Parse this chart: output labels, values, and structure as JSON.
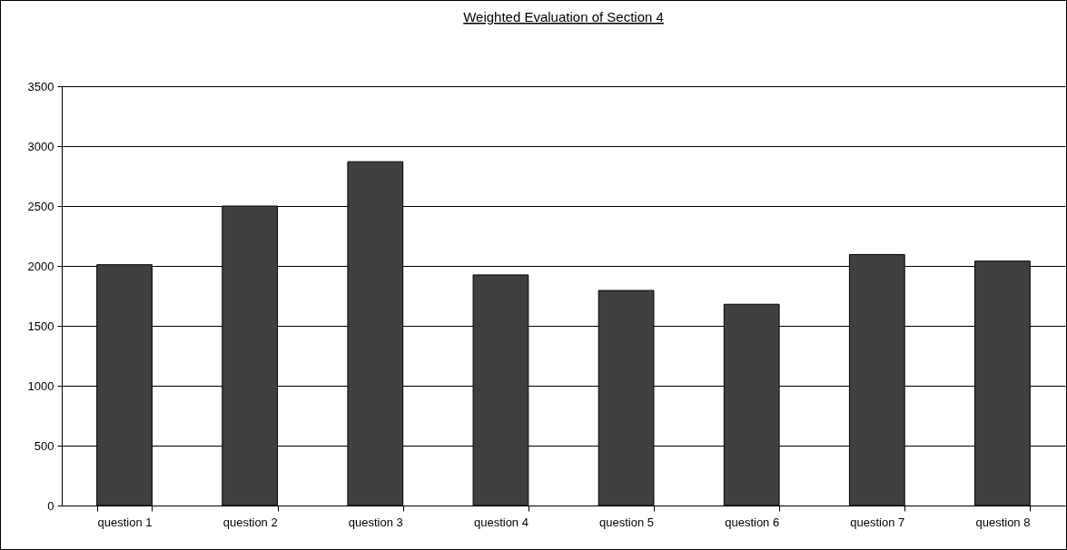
{
  "chart_data": {
    "type": "bar",
    "title": "Weighted Evaluation of Section 4",
    "categories": [
      "question 1",
      "question 2",
      "question 3",
      "question 4",
      "question 5",
      "question 6",
      "question 7",
      "question 8"
    ],
    "values": [
      2010,
      2500,
      2870,
      1925,
      1795,
      1680,
      2095,
      2040
    ],
    "color": "#404040",
    "ylim": [
      0,
      3500
    ],
    "yticks": [
      0,
      500,
      1000,
      1500,
      2000,
      2500,
      3000,
      3500
    ],
    "grid": "y"
  }
}
